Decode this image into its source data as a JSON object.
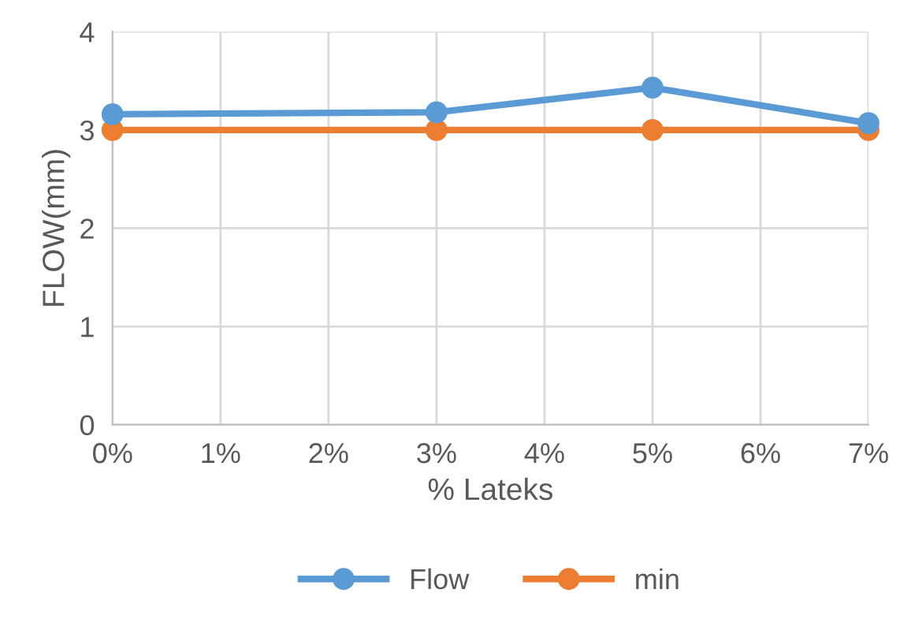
{
  "chart_data": {
    "type": "line",
    "xlabel": "% Lateks",
    "ylabel": "FLOW(mm)",
    "x": [
      0,
      3,
      5,
      7
    ],
    "series": [
      {
        "name": "Flow",
        "color": "#5b9bd5",
        "values": [
          3.16,
          3.18,
          3.43,
          3.07
        ]
      },
      {
        "name": "min",
        "color": "#ed7d31",
        "values": [
          3,
          3,
          3,
          3
        ]
      }
    ],
    "xlim": [
      0,
      7
    ],
    "xticks": [
      {
        "value": 0,
        "label": "0%"
      },
      {
        "value": 1,
        "label": "1%"
      },
      {
        "value": 2,
        "label": "2%"
      },
      {
        "value": 3,
        "label": "3%"
      },
      {
        "value": 4,
        "label": "4%"
      },
      {
        "value": 5,
        "label": "5%"
      },
      {
        "value": 6,
        "label": "6%"
      },
      {
        "value": 7,
        "label": "7%"
      }
    ],
    "ylim": [
      0,
      4
    ],
    "yticks": [
      0,
      1,
      2,
      3,
      4
    ],
    "grid": true,
    "legend": "bottom",
    "marker": "circle",
    "line_style": "solid"
  }
}
